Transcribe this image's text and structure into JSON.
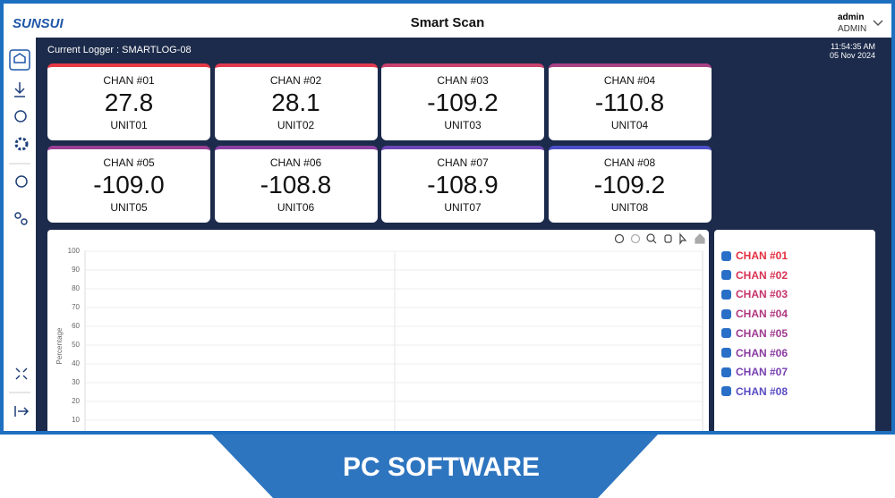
{
  "header": {
    "logo": "SUNSUI",
    "title": "Smart Scan",
    "user": "admin",
    "role": "ADMIN"
  },
  "status": {
    "logger": "Current Logger : SMARTLOG-08",
    "time": "11:54:35 AM",
    "date": "05 Nov 2024"
  },
  "cards": [
    {
      "channel": "CHAN #01",
      "value": "27.8",
      "unit": "UNIT01",
      "color": "#e53945"
    },
    {
      "channel": "CHAN #02",
      "value": "28.1",
      "unit": "UNIT02",
      "color": "#e0394f"
    },
    {
      "channel": "CHAN #03",
      "value": "-109.2",
      "unit": "UNIT03",
      "color": "#c8406e"
    },
    {
      "channel": "CHAN #04",
      "value": "-110.8",
      "unit": "UNIT04",
      "color": "#a94185"
    },
    {
      "channel": "CHAN #05",
      "value": "-109.0",
      "unit": "UNIT05",
      "color": "#9a3f95"
    },
    {
      "channel": "CHAN #06",
      "value": "-108.8",
      "unit": "UNIT06",
      "color": "#8b3fa3"
    },
    {
      "channel": "CHAN #07",
      "value": "-108.9",
      "unit": "UNIT07",
      "color": "#6c45b5"
    },
    {
      "channel": "CHAN #08",
      "value": "-109.2",
      "unit": "UNIT08",
      "color": "#4b4fc8"
    }
  ],
  "chart": {
    "ylabel": "Percentage",
    "yticks": [
      100,
      90,
      80,
      70,
      60,
      50,
      40,
      30,
      20,
      10
    ]
  },
  "legend": [
    {
      "label": "CHAN #01",
      "color": "#e5303f"
    },
    {
      "label": "CHAN #02",
      "color": "#d93354"
    },
    {
      "label": "CHAN #03",
      "color": "#c7336b"
    },
    {
      "label": "CHAN #04",
      "color": "#b0387f"
    },
    {
      "label": "CHAN #05",
      "color": "#9e3a90"
    },
    {
      "label": "CHAN #06",
      "color": "#8a3ba0"
    },
    {
      "label": "CHAN #07",
      "color": "#7840b0"
    },
    {
      "label": "CHAN #08",
      "color": "#5a4dc2"
    }
  ],
  "banner": "PC SOFTWARE"
}
